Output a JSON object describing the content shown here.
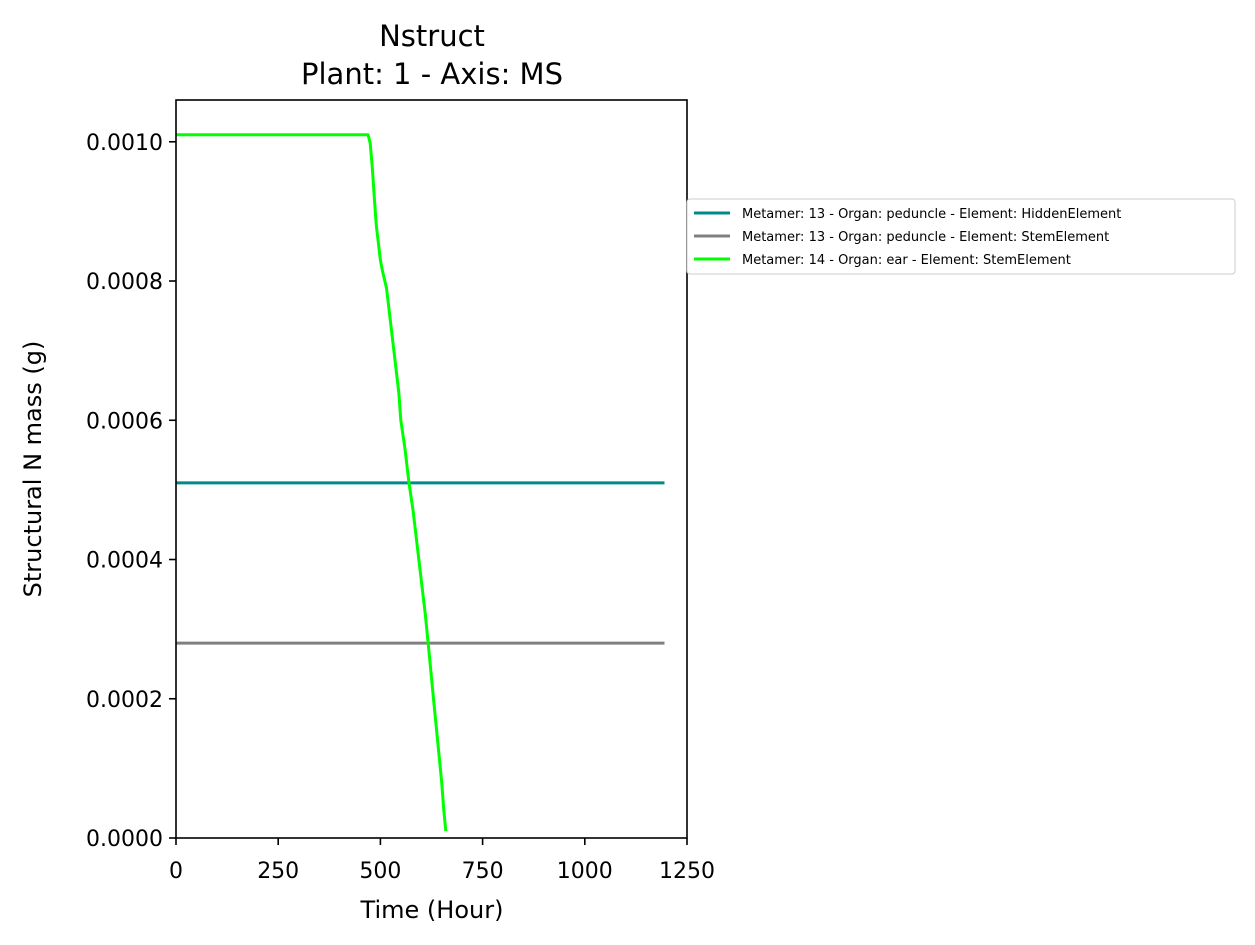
{
  "chart_data": {
    "type": "line",
    "title": "Nstruct",
    "subtitle": "Plant: 1 - Axis: MS",
    "xlabel": "Time (Hour)",
    "ylabel": "Structural N mass (g)",
    "xlim": [
      0,
      1250
    ],
    "ylim": [
      0,
      0.00106
    ],
    "xticks": [
      0,
      250,
      500,
      750,
      1000,
      1250
    ],
    "xtick_labels": [
      "0",
      "250",
      "500",
      "750",
      "1000",
      "1250"
    ],
    "yticks": [
      0,
      0.0002,
      0.0004,
      0.0006,
      0.0008,
      0.001
    ],
    "ytick_labels": [
      "0.0000",
      "0.0002",
      "0.0004",
      "0.0006",
      "0.0008",
      "0.0010"
    ],
    "grid": false,
    "legend_position": "outside-right",
    "series": [
      {
        "name": "Metamer: 13 - Organ: peduncle - Element: HiddenElement",
        "color": "#008b8b",
        "x": [
          0,
          1195
        ],
        "y": [
          0.00051,
          0.00051
        ]
      },
      {
        "name": "Metamer: 13 - Organ: peduncle - Element: StemElement",
        "color": "#808080",
        "x": [
          0,
          1195
        ],
        "y": [
          0.00028,
          0.00028
        ]
      },
      {
        "name": "Metamer: 14 - Organ: ear - Element: StemElement",
        "color": "#00ff00",
        "x": [
          0,
          470,
          475,
          480,
          485,
          490,
          500,
          505,
          515,
          525,
          535,
          545,
          550,
          560,
          570,
          580,
          590,
          600,
          610,
          620,
          630,
          640,
          650,
          655,
          660
        ],
        "y": [
          0.00101,
          0.00101,
          0.000998,
          0.000965,
          0.00092,
          0.00088,
          0.00083,
          0.000815,
          0.00079,
          0.00074,
          0.00069,
          0.00064,
          0.0006,
          0.00056,
          0.00051,
          0.00047,
          0.00042,
          0.00037,
          0.00032,
          0.00026,
          0.0002,
          0.00014,
          8e-05,
          4e-05,
          1e-05
        ]
      }
    ]
  }
}
